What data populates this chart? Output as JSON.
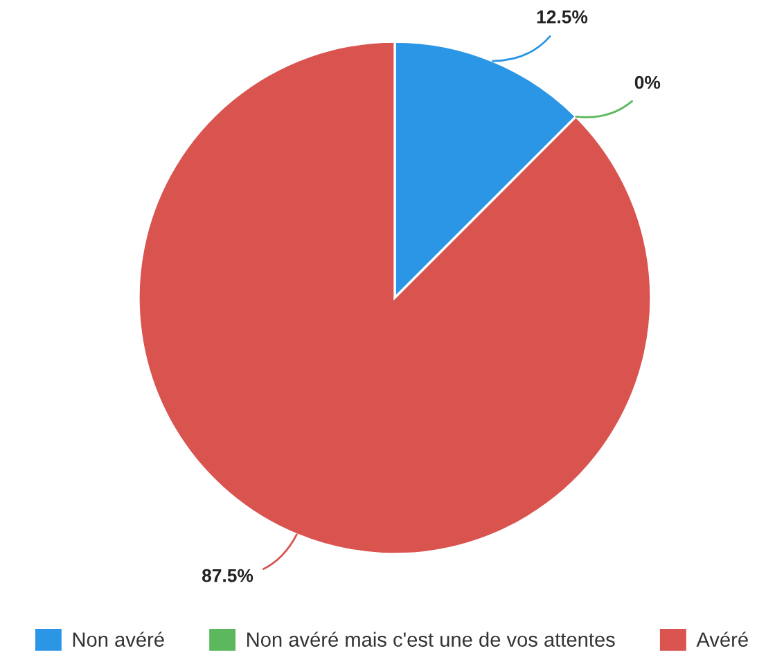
{
  "chart_data": {
    "type": "pie",
    "categories": [
      "Non avéré",
      "Non avéré mais c'est une de vos attentes",
      "Avéré"
    ],
    "values": [
      12.5,
      0,
      87.5
    ],
    "colors": [
      "#2b96e6",
      "#5cb85c",
      "#d9534f"
    ],
    "value_labels": [
      "12.5%",
      "0%",
      "87.5%"
    ],
    "legend": "bottom"
  }
}
